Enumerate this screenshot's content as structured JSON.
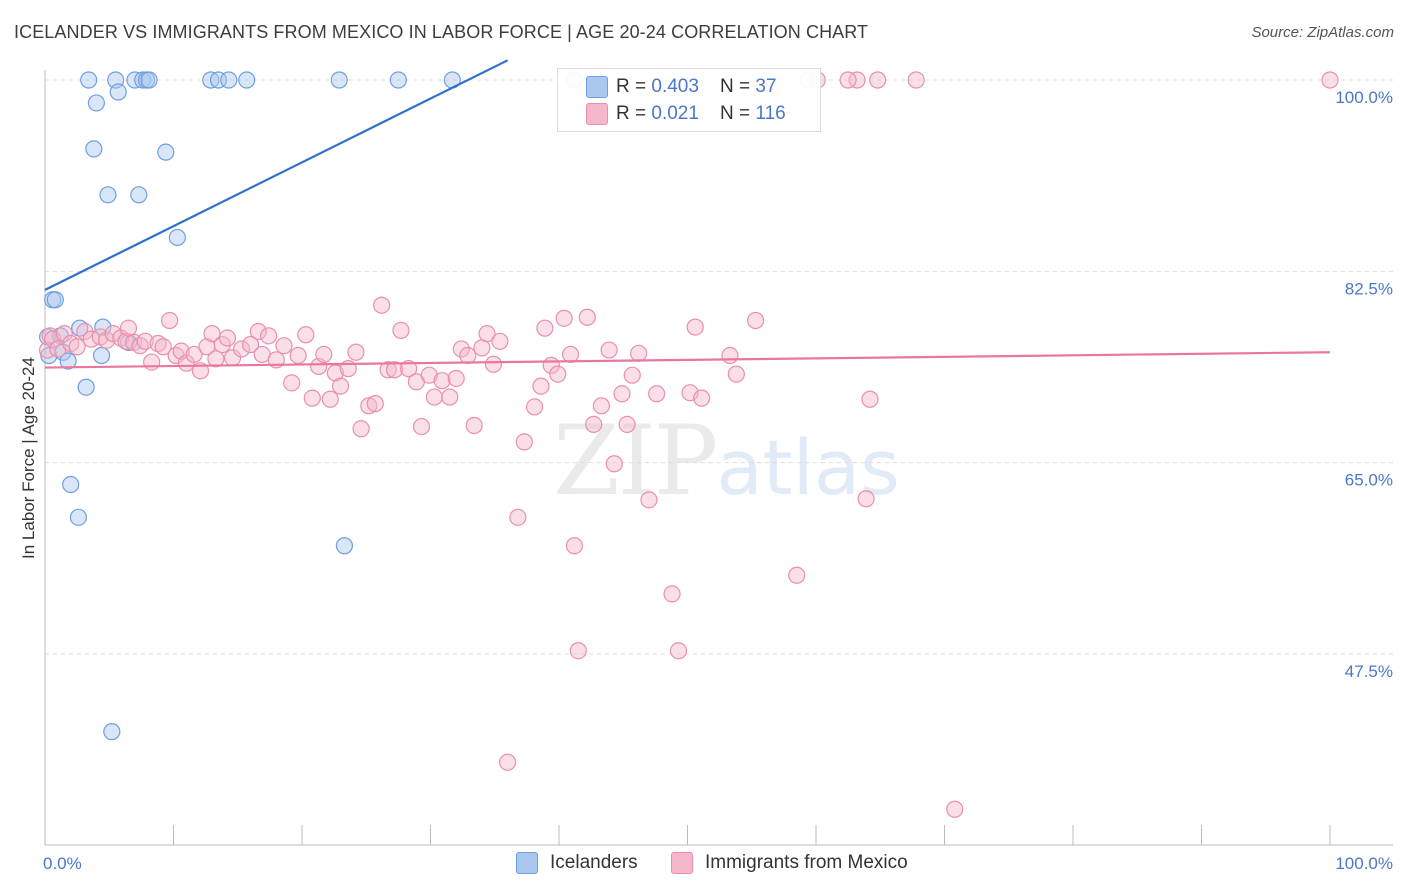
{
  "title": "ICELANDER VS IMMIGRANTS FROM MEXICO IN LABOR FORCE | AGE 20-24 CORRELATION CHART",
  "source": "Source: ZipAtlas.com",
  "watermark": {
    "zip": "ZIP",
    "atlas": "atlas"
  },
  "stats": [
    {
      "r_label": "R = ",
      "r_value": "0.403",
      "n_label": "N = ",
      "n_value": "37",
      "color": "#aac7ef"
    },
    {
      "r_label": "R = ",
      "r_value": "0.021",
      "n_label": "N = ",
      "n_value": "116",
      "color": "#f5b8cb"
    }
  ],
  "legend": [
    {
      "label": "Icelanders",
      "color": "#aac7ef"
    },
    {
      "label": "Immigrants from Mexico",
      "color": "#f5b8cb"
    }
  ],
  "chart_data": {
    "type": "scatter",
    "ylabel": "In Labor Force | Age 20-24",
    "xlim": [
      0,
      100
    ],
    "ylim": [
      32,
      102
    ],
    "x_tick_labels": [
      {
        "value": 0,
        "label": "0.0%"
      },
      {
        "value": 100,
        "label": "100.0%"
      }
    ],
    "y_tick_labels": [
      {
        "value": 100,
        "label": "100.0%"
      },
      {
        "value": 82.5,
        "label": "82.5%"
      },
      {
        "value": 65,
        "label": "65.0%"
      },
      {
        "value": 47.5,
        "label": "47.5%"
      }
    ],
    "grid": true,
    "series": [
      {
        "name": "Icelanders",
        "color": "#6f9fe0",
        "fill": "#aac7ef",
        "trend": {
          "x": [
            0,
            36
          ],
          "y": [
            80.8,
            101.8
          ],
          "color": "#2f6fce"
        },
        "points": [
          [
            0.2,
            76.5
          ],
          [
            0.3,
            74.8
          ],
          [
            0.6,
            79.9
          ],
          [
            0.8,
            79.9
          ],
          [
            1.2,
            76.6
          ],
          [
            1.4,
            75.1
          ],
          [
            1.8,
            74.3
          ],
          [
            2.0,
            63.0
          ],
          [
            2.6,
            60.0
          ],
          [
            2.7,
            77.3
          ],
          [
            3.2,
            71.9
          ],
          [
            3.4,
            100
          ],
          [
            3.8,
            93.7
          ],
          [
            4.0,
            97.9
          ],
          [
            4.4,
            74.8
          ],
          [
            4.5,
            77.4
          ],
          [
            4.9,
            89.5
          ],
          [
            5.2,
            40.4
          ],
          [
            5.5,
            100
          ],
          [
            5.7,
            98.9
          ],
          [
            6.5,
            76.0
          ],
          [
            7.0,
            100
          ],
          [
            7.3,
            89.5
          ],
          [
            7.6,
            100
          ],
          [
            7.9,
            100
          ],
          [
            8.1,
            100
          ],
          [
            9.4,
            93.4
          ],
          [
            10.3,
            85.6
          ],
          [
            12.9,
            100
          ],
          [
            13.5,
            100
          ],
          [
            14.3,
            100
          ],
          [
            15.7,
            100
          ],
          [
            22.9,
            100
          ],
          [
            23.3,
            57.4
          ],
          [
            27.5,
            100
          ],
          [
            31.7,
            100
          ],
          [
            41.2,
            100
          ]
        ]
      },
      {
        "name": "Immigrants from Mexico",
        "color": "#ea8fab",
        "fill": "#f5b8cb",
        "trend": {
          "x": [
            0,
            100
          ],
          "y": [
            73.7,
            75.1
          ],
          "color": "#e8769d"
        },
        "points": [
          [
            0.2,
            75.3
          ],
          [
            0.4,
            76.6
          ],
          [
            0.6,
            76.3
          ],
          [
            1.0,
            75.4
          ],
          [
            1.5,
            76.8
          ],
          [
            2.0,
            75.9
          ],
          [
            2.5,
            75.6
          ],
          [
            3.1,
            77.0
          ],
          [
            3.6,
            76.3
          ],
          [
            4.3,
            76.5
          ],
          [
            4.8,
            76.2
          ],
          [
            5.3,
            76.8
          ],
          [
            5.9,
            76.4
          ],
          [
            6.3,
            76.1
          ],
          [
            6.5,
            77.3
          ],
          [
            6.9,
            76.0
          ],
          [
            7.4,
            75.7
          ],
          [
            7.8,
            76.1
          ],
          [
            8.3,
            74.2
          ],
          [
            8.8,
            75.9
          ],
          [
            9.2,
            75.6
          ],
          [
            9.7,
            78.0
          ],
          [
            10.2,
            74.8
          ],
          [
            10.6,
            75.2
          ],
          [
            11.0,
            74.1
          ],
          [
            11.6,
            74.9
          ],
          [
            12.1,
            73.4
          ],
          [
            12.6,
            75.6
          ],
          [
            13.0,
            76.8
          ],
          [
            13.3,
            74.5
          ],
          [
            13.8,
            75.8
          ],
          [
            14.2,
            76.4
          ],
          [
            14.6,
            74.6
          ],
          [
            15.3,
            75.4
          ],
          [
            16.0,
            75.8
          ],
          [
            16.6,
            77.0
          ],
          [
            16.9,
            74.9
          ],
          [
            17.4,
            76.6
          ],
          [
            18.0,
            74.4
          ],
          [
            18.6,
            75.7
          ],
          [
            19.2,
            72.3
          ],
          [
            19.7,
            74.8
          ],
          [
            20.3,
            76.7
          ],
          [
            20.8,
            70.9
          ],
          [
            21.3,
            73.8
          ],
          [
            21.7,
            74.9
          ],
          [
            22.2,
            70.8
          ],
          [
            22.6,
            73.2
          ],
          [
            23.0,
            72.0
          ],
          [
            23.6,
            73.6
          ],
          [
            24.2,
            75.1
          ],
          [
            24.6,
            68.1
          ],
          [
            25.2,
            70.2
          ],
          [
            25.7,
            70.4
          ],
          [
            26.2,
            79.4
          ],
          [
            26.7,
            73.5
          ],
          [
            27.2,
            73.5
          ],
          [
            27.7,
            77.1
          ],
          [
            28.3,
            73.6
          ],
          [
            28.9,
            72.4
          ],
          [
            29.3,
            68.3
          ],
          [
            29.9,
            73.0
          ],
          [
            30.3,
            71.0
          ],
          [
            30.9,
            72.5
          ],
          [
            31.5,
            71.0
          ],
          [
            32.0,
            72.7
          ],
          [
            32.4,
            75.4
          ],
          [
            32.9,
            74.8
          ],
          [
            33.4,
            68.4
          ],
          [
            34.0,
            75.5
          ],
          [
            34.4,
            76.8
          ],
          [
            34.9,
            74.0
          ],
          [
            35.4,
            76.1
          ],
          [
            36.0,
            37.6
          ],
          [
            36.8,
            60.0
          ],
          [
            37.3,
            66.9
          ],
          [
            38.1,
            70.1
          ],
          [
            38.6,
            72.0
          ],
          [
            38.9,
            77.3
          ],
          [
            39.4,
            73.9
          ],
          [
            39.9,
            73.1
          ],
          [
            40.4,
            78.2
          ],
          [
            40.9,
            74.9
          ],
          [
            41.2,
            57.4
          ],
          [
            41.5,
            47.8
          ],
          [
            42.2,
            78.3
          ],
          [
            42.7,
            68.5
          ],
          [
            43.3,
            70.2
          ],
          [
            43.9,
            75.3
          ],
          [
            44.3,
            64.9
          ],
          [
            44.9,
            71.3
          ],
          [
            45.3,
            68.5
          ],
          [
            45.7,
            73.0
          ],
          [
            46.2,
            75.0
          ],
          [
            47.0,
            61.6
          ],
          [
            47.6,
            71.3
          ],
          [
            48.8,
            53.0
          ],
          [
            49.3,
            47.8
          ],
          [
            50.2,
            71.4
          ],
          [
            50.6,
            77.4
          ],
          [
            51.1,
            70.9
          ],
          [
            53.3,
            74.8
          ],
          [
            53.8,
            73.1
          ],
          [
            55.3,
            78.0
          ],
          [
            58.5,
            54.7
          ],
          [
            63.2,
            100
          ],
          [
            63.9,
            61.7
          ],
          [
            64.2,
            70.8
          ],
          [
            64.8,
            100
          ],
          [
            70.8,
            33.3
          ],
          [
            100,
            100
          ],
          [
            59.4,
            100
          ],
          [
            60.1,
            100
          ],
          [
            62.5,
            100
          ],
          [
            67.8,
            100
          ]
        ]
      }
    ]
  }
}
